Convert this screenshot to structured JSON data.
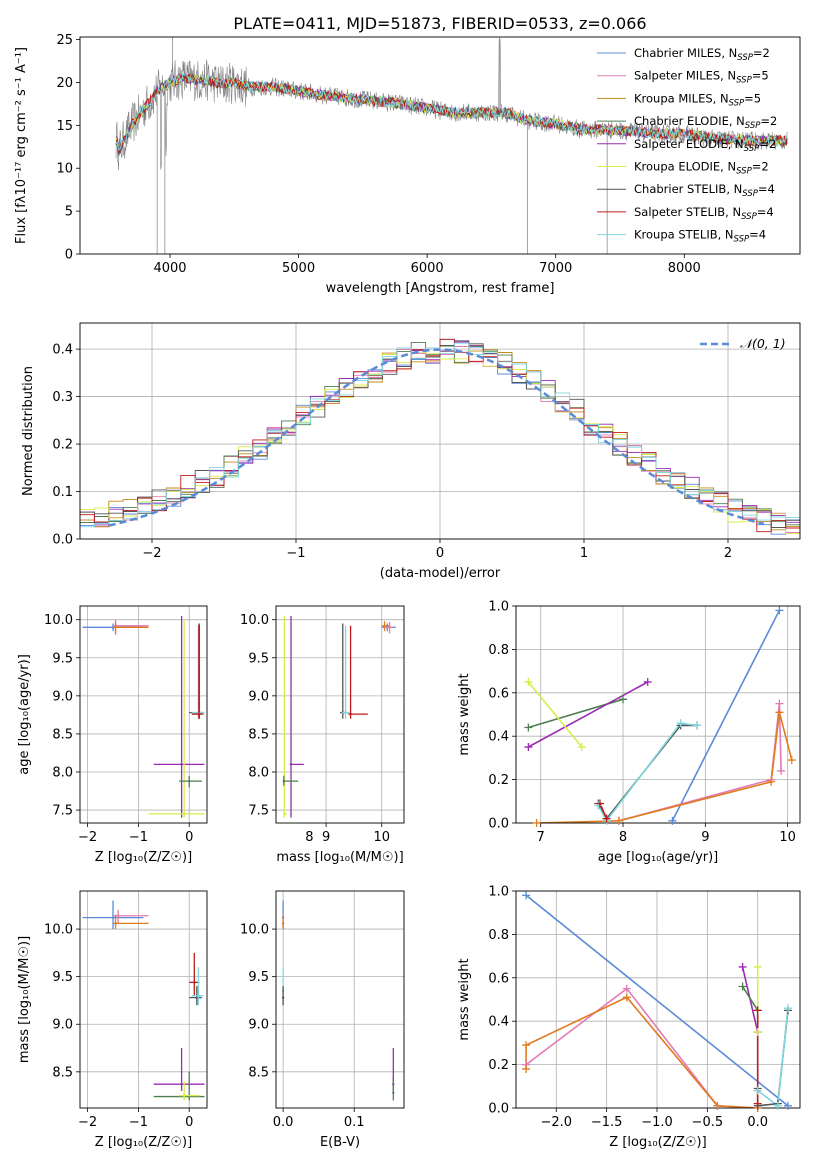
{
  "title": "PLATE=0411, MJD=51873, FIBERID=0533, z=0.066",
  "colors": {
    "Chabrier MILES": "#5b8ad9",
    "Salpeter MILES": "#e47ab4",
    "Kroupa MILES": "#c78a1a",
    "Chabrier ELODIE": "#4f7f4f",
    "Salpeter ELODIE": "#9b2bb3",
    "Kroupa ELODIE": "#d8ec4a",
    "Chabrier STELIB": "#555555",
    "Salpeter STELIB": "#c01a1a",
    "Kroupa STELIB": "#7fd8df",
    "orange": "#e07b1f",
    "noise": "#808080",
    "gauss": "#5b8ad9"
  },
  "chart_data": [
    {
      "type": "line",
      "id": "spectrum",
      "xlabel": "wavelength [Angstrom, rest frame]",
      "ylabel": "Flux [fλ10⁻¹⁷ erg cm⁻² s⁻¹ A⁻¹]",
      "xlim": [
        3300,
        8900
      ],
      "ylim": [
        0,
        25.3
      ],
      "xticks": [
        4000,
        5000,
        6000,
        7000,
        8000
      ],
      "yticks": [
        0,
        5,
        10,
        15,
        20,
        25
      ],
      "legend_position": "top-right",
      "legend": [
        {
          "name": "Chabrier MILES, N",
          "sub": "SSP",
          "suffix": "=2"
        },
        {
          "name": "Salpeter MILES, N",
          "sub": "SSP",
          "suffix": "=5"
        },
        {
          "name": "Kroupa MILES, N",
          "sub": "SSP",
          "suffix": "=5"
        },
        {
          "name": "Chabrier ELODIE, N",
          "sub": "SSP",
          "suffix": "=2"
        },
        {
          "name": "Salpeter ELODIE, N",
          "sub": "SSP",
          "suffix": "=2"
        },
        {
          "name": "Kroupa ELODIE, N",
          "sub": "SSP",
          "suffix": "=2"
        },
        {
          "name": "Chabrier STELIB, N",
          "sub": "SSP",
          "suffix": "=4"
        },
        {
          "name": "Salpeter STELIB, N",
          "sub": "SSP",
          "suffix": "=4"
        },
        {
          "name": "Kroupa STELIB, N",
          "sub": "SSP",
          "suffix": "=4"
        }
      ],
      "envelope": {
        "x": [
          3600,
          3700,
          3800,
          3900,
          4000,
          4100,
          4200,
          4300,
          4400,
          4500,
          4600,
          4800,
          5000,
          5200,
          5500,
          5800,
          6000,
          6200,
          6500,
          6600,
          6800,
          7000,
          7200,
          7400,
          7600,
          7800,
          8000,
          8200,
          8500,
          8800
        ],
        "y": [
          12,
          15,
          17,
          19,
          20,
          20.5,
          20.3,
          20.2,
          19.8,
          20,
          19.5,
          19.5,
          19,
          18.5,
          18,
          17.5,
          17,
          16.5,
          16.5,
          16.5,
          15.5,
          15.2,
          14.5,
          14.5,
          14.3,
          14,
          14,
          13.5,
          13.2,
          13.2
        ]
      }
    },
    {
      "type": "histogram",
      "id": "residuals",
      "xlabel": "(data-model)/error",
      "ylabel": "Normed distribution",
      "xlim": [
        -2.5,
        2.5
      ],
      "ylim": [
        0,
        0.455
      ],
      "xticks": [
        -2,
        -1,
        0,
        1,
        2
      ],
      "yticks": [
        0,
        0.1,
        0.2,
        0.3,
        0.4
      ],
      "legend_position": "top-right",
      "gauss_label": "𝒩(0, 1)",
      "bin_edges_start": -2.5,
      "bin_width": 0.1,
      "base": [
        0.04,
        0.05,
        0.06,
        0.065,
        0.07,
        0.08,
        0.09,
        0.11,
        0.12,
        0.13,
        0.15,
        0.17,
        0.19,
        0.21,
        0.23,
        0.26,
        0.28,
        0.3,
        0.32,
        0.34,
        0.355,
        0.37,
        0.38,
        0.39,
        0.395,
        0.4,
        0.395,
        0.39,
        0.38,
        0.37,
        0.35,
        0.33,
        0.31,
        0.29,
        0.27,
        0.24,
        0.22,
        0.2,
        0.18,
        0.16,
        0.14,
        0.12,
        0.105,
        0.09,
        0.075,
        0.06,
        0.05,
        0.04,
        0.035,
        0.03
      ]
    },
    {
      "type": "scatter",
      "id": "age-vs-Z",
      "xlabel": "Z [log₁₀(Z/Z☉)]",
      "ylabel": "age  [log₁₀(age/yr)]",
      "xlim": [
        -2.15,
        0.35
      ],
      "ylim": [
        7.33,
        10.18
      ],
      "xticks": [
        -2,
        -1,
        0
      ],
      "yticks": [
        7.5,
        8.0,
        8.5,
        9.0,
        9.5,
        10.0
      ],
      "points": [
        {
          "c": "Chabrier MILES",
          "x": -1.5,
          "y": 9.9,
          "xe": [
            -2.1,
            -0.9
          ],
          "ye": [
            9.85,
            9.95
          ]
        },
        {
          "c": "Salpeter MILES",
          "x": -1.45,
          "y": 9.92,
          "xe": [
            -1.5,
            -0.8
          ],
          "ye": [
            9.8,
            10.0
          ]
        },
        {
          "c": "orange",
          "x": -1.45,
          "y": 9.9,
          "xe": [
            -1.5,
            -0.8
          ],
          "ye": [
            9.82,
            9.97
          ]
        },
        {
          "c": "Salpeter ELODIE",
          "x": -0.15,
          "y": 8.1,
          "xe": [
            -0.7,
            0.3
          ],
          "ye": [
            7.4,
            10.05
          ]
        },
        {
          "c": "Kroupa ELODIE",
          "x": -0.1,
          "y": 7.45,
          "xe": [
            -0.8,
            0.3
          ],
          "ye": [
            7.4,
            10.0
          ]
        },
        {
          "c": "Chabrier ELODIE",
          "x": 0.0,
          "y": 7.88,
          "xe": [
            -0.2,
            0.25
          ],
          "ye": [
            7.8,
            7.95
          ]
        },
        {
          "c": "Chabrier STELIB",
          "x": 0.2,
          "y": 8.78,
          "xe": [
            0.0,
            0.3
          ],
          "ye": [
            8.7,
            9.95
          ]
        },
        {
          "c": "Kroupa STELIB",
          "x": 0.18,
          "y": 8.78,
          "xe": [
            0.05,
            0.3
          ],
          "ye": [
            8.7,
            9.95
          ]
        },
        {
          "c": "Salpeter STELIB",
          "x": 0.19,
          "y": 8.76,
          "xe": [
            0.05,
            0.28
          ],
          "ye": [
            8.7,
            9.93
          ]
        }
      ]
    },
    {
      "type": "scatter",
      "id": "age-vs-mass",
      "xlabel": "mass [log₁₀(M/M☉)]",
      "ylabel": "",
      "xlim": [
        8.1,
        10.4
      ],
      "ylim": [
        7.33,
        10.18
      ],
      "xticks": [
        9,
        10
      ],
      "tick_labels": [
        "9",
        "10"
      ],
      "minor_label": {
        "x": 8.7,
        "text": "8"
      },
      "yticks": [
        7.5,
        8.0,
        8.5,
        9.0,
        9.5,
        10.0
      ],
      "points": [
        {
          "c": "Kroupa ELODIE",
          "x": 8.25,
          "y": 7.45,
          "xe": [
            8.25,
            8.3
          ],
          "ye": [
            7.4,
            10.05
          ]
        },
        {
          "c": "Salpeter ELODIE",
          "x": 8.37,
          "y": 8.1,
          "xe": [
            8.37,
            8.6
          ],
          "ye": [
            7.4,
            10.05
          ]
        },
        {
          "c": "Chabrier ELODIE",
          "x": 8.24,
          "y": 7.88,
          "xe": [
            8.24,
            8.5
          ],
          "ye": [
            7.82,
            7.95
          ]
        },
        {
          "c": "Chabrier STELIB",
          "x": 9.3,
          "y": 8.78,
          "xe": [
            9.25,
            9.4
          ],
          "ye": [
            8.7,
            9.95
          ]
        },
        {
          "c": "Kroupa STELIB",
          "x": 9.35,
          "y": 8.78,
          "xe": [
            9.28,
            9.42
          ],
          "ye": [
            8.7,
            9.92
          ]
        },
        {
          "c": "Salpeter STELIB",
          "x": 9.44,
          "y": 8.76,
          "xe": [
            9.4,
            9.75
          ],
          "ye": [
            8.7,
            9.92
          ]
        },
        {
          "c": "Chabrier MILES",
          "x": 10.1,
          "y": 9.9,
          "xe": [
            10.0,
            10.25
          ],
          "ye": [
            9.85,
            9.95
          ]
        },
        {
          "c": "orange",
          "x": 10.05,
          "y": 9.92,
          "xe": [
            10.0,
            10.15
          ],
          "ye": [
            9.85,
            9.98
          ]
        },
        {
          "c": "Salpeter MILES",
          "x": 10.14,
          "y": 9.9,
          "xe": [
            10.05,
            10.2
          ],
          "ye": [
            9.82,
            9.97
          ]
        }
      ]
    },
    {
      "type": "line",
      "id": "weight-vs-age",
      "xlabel": "age  [log₁₀(age/yr)]",
      "ylabel": "mass weight",
      "xlim": [
        6.7,
        10.15
      ],
      "ylim": [
        0,
        1
      ],
      "xticks": [
        7,
        8,
        9,
        10
      ],
      "yticks": [
        0.0,
        0.2,
        0.4,
        0.6,
        0.8,
        1.0
      ],
      "series": [
        {
          "c": "Chabrier MILES",
          "points": [
            [
              8.6,
              0.01
            ],
            [
              9.9,
              0.98
            ]
          ]
        },
        {
          "c": "Salpeter MILES",
          "points": [
            [
              7.95,
              0.01
            ],
            [
              9.8,
              0.2
            ],
            [
              9.9,
              0.55
            ],
            [
              9.92,
              0.24
            ]
          ]
        },
        {
          "c": "orange",
          "points": [
            [
              6.95,
              0.0
            ],
            [
              7.95,
              0.01
            ],
            [
              9.8,
              0.19
            ],
            [
              9.9,
              0.51
            ],
            [
              10.05,
              0.29
            ]
          ]
        },
        {
          "c": "Chabrier ELODIE",
          "points": [
            [
              6.85,
              0.44
            ],
            [
              8.0,
              0.57
            ]
          ]
        },
        {
          "c": "Salpeter ELODIE",
          "points": [
            [
              6.85,
              0.35
            ],
            [
              8.3,
              0.65
            ]
          ]
        },
        {
          "c": "Kroupa ELODIE",
          "points": [
            [
              6.85,
              0.65
            ],
            [
              7.5,
              0.35
            ]
          ]
        },
        {
          "c": "Chabrier STELIB",
          "points": [
            [
              7.7,
              0.09
            ],
            [
              7.8,
              0.02
            ],
            [
              8.7,
              0.45
            ],
            [
              8.9,
              0.45
            ]
          ]
        },
        {
          "c": "Kroupa STELIB",
          "points": [
            [
              7.7,
              0.08
            ],
            [
              7.8,
              0.01
            ],
            [
              8.7,
              0.46
            ],
            [
              8.9,
              0.45
            ]
          ]
        },
        {
          "c": "Salpeter STELIB",
          "points": [
            [
              7.72,
              0.09
            ],
            [
              7.8,
              0.02
            ]
          ]
        }
      ]
    },
    {
      "type": "scatter",
      "id": "mass-vs-Z",
      "xlabel": "Z [log₁₀(Z/Z☉)]",
      "ylabel": "mass [log₁₀(M/M☉)]",
      "xlim": [
        -2.15,
        0.35
      ],
      "ylim": [
        8.12,
        10.4
      ],
      "xticks": [
        -2,
        -1,
        0
      ],
      "yticks": [
        8.5,
        9.0,
        9.5,
        10.0
      ],
      "points": [
        {
          "c": "Chabrier MILES",
          "x": -1.5,
          "y": 10.12,
          "xe": [
            -2.1,
            -0.9
          ],
          "ye": [
            10.0,
            10.3
          ]
        },
        {
          "c": "Salpeter MILES",
          "x": -1.4,
          "y": 10.14,
          "xe": [
            -1.5,
            -0.8
          ],
          "ye": [
            10.05,
            10.2
          ]
        },
        {
          "c": "orange",
          "x": -1.45,
          "y": 10.06,
          "xe": [
            -1.5,
            -0.8
          ],
          "ye": [
            10.0,
            10.15
          ]
        },
        {
          "c": "Salpeter ELODIE",
          "x": -0.15,
          "y": 8.37,
          "xe": [
            -0.7,
            0.3
          ],
          "ye": [
            8.3,
            8.75
          ]
        },
        {
          "c": "Chabrier ELODIE",
          "x": 0.0,
          "y": 8.24,
          "xe": [
            -0.7,
            0.3
          ],
          "ye": [
            8.2,
            8.5
          ]
        },
        {
          "c": "Kroupa ELODIE",
          "x": -0.1,
          "y": 8.25,
          "xe": [
            -0.2,
            0.2
          ],
          "ye": [
            8.2,
            8.4
          ]
        },
        {
          "c": "Salpeter STELIB",
          "x": 0.1,
          "y": 9.44,
          "xe": [
            0.0,
            0.2
          ],
          "ye": [
            9.3,
            9.75
          ]
        },
        {
          "c": "Chabrier STELIB",
          "x": 0.15,
          "y": 9.28,
          "xe": [
            0.0,
            0.25
          ],
          "ye": [
            9.2,
            9.4
          ]
        },
        {
          "c": "Kroupa STELIB",
          "x": 0.18,
          "y": 9.3,
          "xe": [
            0.05,
            0.28
          ],
          "ye": [
            9.2,
            9.6
          ]
        }
      ]
    },
    {
      "type": "scatter",
      "id": "mass-vs-EBV",
      "xlabel": "E(B-V)",
      "ylabel": "",
      "xlim": [
        -0.01,
        0.17
      ],
      "ylim": [
        8.12,
        10.4
      ],
      "xticks": [
        0.0,
        0.1
      ],
      "tick_labels": [
        "0.0",
        "0.1"
      ],
      "yticks": [
        8.5,
        9.0,
        9.5,
        10.0
      ],
      "points": [
        {
          "c": "Chabrier MILES",
          "x": 0.0,
          "y": 10.12,
          "xe": [
            0.0,
            0.0
          ],
          "ye": [
            10.0,
            10.3
          ]
        },
        {
          "c": "orange",
          "x": 0.0,
          "y": 10.06,
          "xe": [
            0.0,
            0.0
          ],
          "ye": [
            10.0,
            10.15
          ]
        },
        {
          "c": "Kroupa STELIB",
          "x": 0.0,
          "y": 9.35,
          "xe": [
            0.0,
            0.0
          ],
          "ye": [
            9.2,
            9.6
          ]
        },
        {
          "c": "Chabrier STELIB",
          "x": 0.0,
          "y": 9.28,
          "xe": [
            0.0,
            0.0
          ],
          "ye": [
            9.2,
            9.4
          ]
        },
        {
          "c": "Salpeter ELODIE",
          "x": 0.155,
          "y": 8.37,
          "xe": [
            0.155,
            0.155
          ],
          "ye": [
            8.3,
            8.75
          ]
        },
        {
          "c": "Chabrier ELODIE",
          "x": 0.155,
          "y": 8.28,
          "xe": [
            0.155,
            0.155
          ],
          "ye": [
            8.2,
            8.45
          ]
        }
      ]
    },
    {
      "type": "line",
      "id": "weight-vs-Z",
      "xlabel": "Z [log₁₀(Z/Z☉)]",
      "ylabel": "mass weight",
      "xlim": [
        -2.4,
        0.42
      ],
      "ylim": [
        0,
        1
      ],
      "xticks": [
        -2.0,
        -1.5,
        -1.0,
        -0.5,
        0.0
      ],
      "tick_labels": [
        "−2.0",
        "−1.5",
        "−1.0",
        "−0.5",
        "0.0"
      ],
      "yticks": [
        0.0,
        0.2,
        0.4,
        0.6,
        0.8,
        1.0
      ],
      "series": [
        {
          "c": "Chabrier MILES",
          "points": [
            [
              -2.3,
              0.98
            ],
            [
              0.3,
              0.01
            ]
          ]
        },
        {
          "c": "Salpeter MILES",
          "points": [
            [
              -2.3,
              0.2
            ],
            [
              -1.3,
              0.55
            ],
            [
              -0.4,
              0.01
            ],
            [
              0.0,
              0.0
            ]
          ]
        },
        {
          "c": "orange",
          "points": [
            [
              -2.3,
              0.18
            ],
            [
              -2.3,
              0.29
            ],
            [
              -1.3,
              0.51
            ],
            [
              -0.4,
              0.01
            ],
            [
              0.0,
              0.0
            ]
          ]
        },
        {
          "c": "Salpeter ELODIE",
          "points": [
            [
              -0.15,
              0.65
            ],
            [
              0.0,
              0.35
            ]
          ]
        },
        {
          "c": "Chabrier ELODIE",
          "points": [
            [
              -0.15,
              0.56
            ],
            [
              0.0,
              0.45
            ]
          ]
        },
        {
          "c": "Kroupa ELODIE",
          "points": [
            [
              0.0,
              0.65
            ],
            [
              0.0,
              0.35
            ]
          ]
        },
        {
          "c": "Chabrier STELIB",
          "points": [
            [
              0.0,
              0.09
            ],
            [
              0.0,
              0.01
            ],
            [
              0.2,
              0.02
            ],
            [
              0.3,
              0.45
            ]
          ]
        },
        {
          "c": "Kroupa STELIB",
          "points": [
            [
              0.0,
              0.45
            ],
            [
              0.0,
              0.08
            ],
            [
              0.2,
              0.01
            ],
            [
              0.3,
              0.46
            ]
          ]
        },
        {
          "c": "Salpeter STELIB",
          "points": [
            [
              0.0,
              0.45
            ],
            [
              0.0,
              0.02
            ]
          ]
        }
      ]
    }
  ]
}
